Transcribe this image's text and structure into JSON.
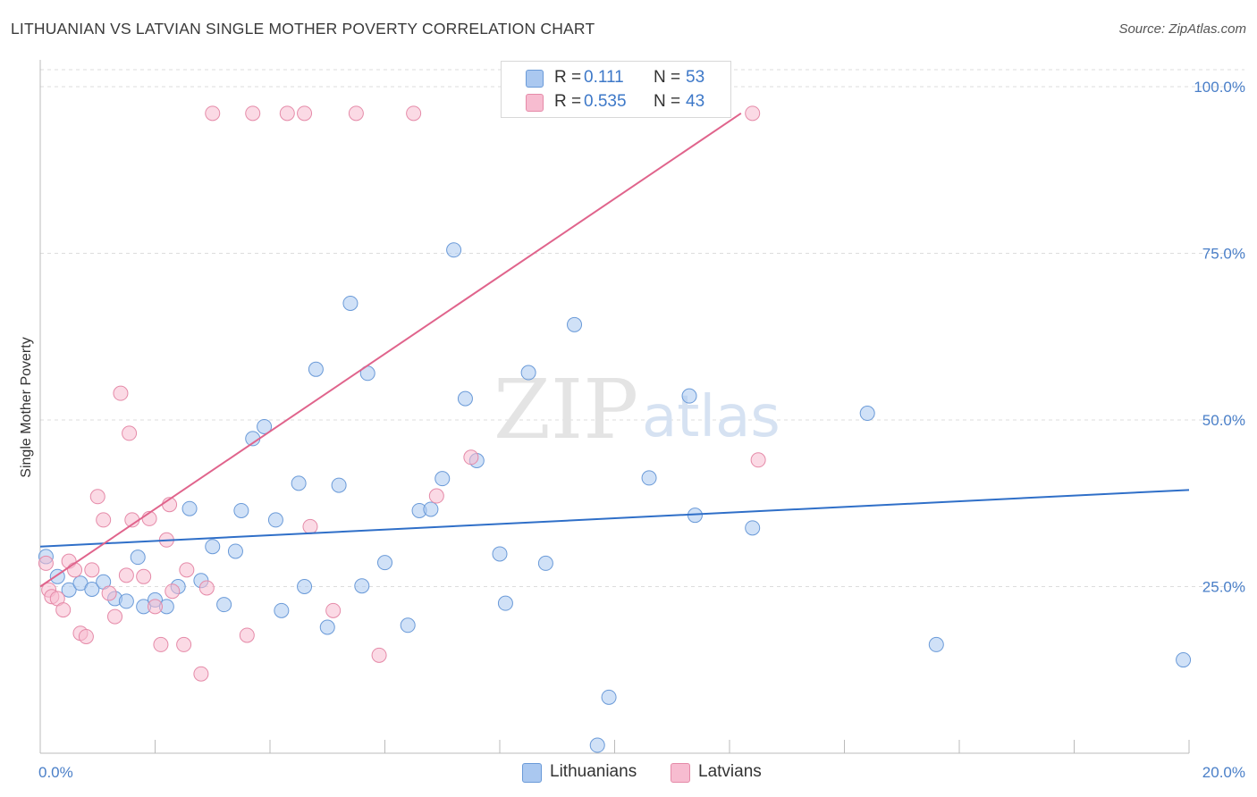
{
  "header": {
    "title": "LITHUANIAN VS LATVIAN SINGLE MOTHER POVERTY CORRELATION CHART",
    "source": "Source: ZipAtlas.com"
  },
  "watermark": {
    "zip": "ZIP",
    "atlas": "atlas"
  },
  "legend": {
    "rows": [
      {
        "r_label": "R =",
        "r_value": "0.111",
        "n_label": "N =",
        "n_value": "53",
        "color": "#aac8f0"
      },
      {
        "r_label": "R =",
        "r_value": "0.535",
        "n_label": "N =",
        "n_value": "43",
        "color": "#f7bcd0"
      }
    ]
  },
  "bottom_legend": [
    {
      "label": "Lithuanians",
      "color": "#aac8f0"
    },
    {
      "label": "Latvians",
      "color": "#f7bcd0"
    }
  ],
  "colors": {
    "lithuanian_fill": "#aac8f0",
    "lithuanian_stroke": "#6a9ad8",
    "lithuanian_line": "#2f6fc8",
    "latvian_fill": "#f7bcd0",
    "latvian_stroke": "#e58aa8",
    "latvian_line": "#e0648c",
    "axis_text": "#4a7fc8",
    "grid": "#dddddd"
  },
  "chart_data": {
    "type": "scatter",
    "title": "LITHUANIAN VS LATVIAN SINGLE MOTHER POVERTY CORRELATION CHART",
    "xlabel": "",
    "ylabel": "Single Mother Poverty",
    "xlim": [
      0,
      20
    ],
    "ylim": [
      0,
      100
    ],
    "x_tick_labels": [
      "0.0%",
      "20.0%"
    ],
    "y_ticks": [
      25,
      50,
      75,
      100
    ],
    "y_tick_labels": [
      "25.0%",
      "50.0%",
      "75.0%",
      "100.0%"
    ],
    "grid": true,
    "legend_position": "top-center",
    "series": [
      {
        "name": "Lithuanians",
        "r": 0.111,
        "n": 53,
        "trendline": {
          "x": [
            0,
            20
          ],
          "y": [
            31.0,
            39.5
          ]
        },
        "points": [
          [
            0.1,
            29.5
          ],
          [
            0.3,
            26.5
          ],
          [
            0.5,
            24.5
          ],
          [
            0.7,
            25.5
          ],
          [
            0.9,
            24.6
          ],
          [
            1.1,
            25.7
          ],
          [
            1.3,
            23.2
          ],
          [
            1.5,
            22.8
          ],
          [
            1.7,
            29.4
          ],
          [
            1.8,
            22.0
          ],
          [
            2.0,
            23.0
          ],
          [
            2.2,
            22.0
          ],
          [
            2.4,
            25.0
          ],
          [
            2.6,
            36.7
          ],
          [
            2.8,
            25.9
          ],
          [
            3.0,
            31.0
          ],
          [
            3.2,
            22.3
          ],
          [
            3.4,
            30.3
          ],
          [
            3.5,
            36.4
          ],
          [
            3.7,
            47.2
          ],
          [
            3.9,
            49.0
          ],
          [
            4.1,
            35.0
          ],
          [
            4.2,
            21.4
          ],
          [
            4.5,
            40.5
          ],
          [
            4.6,
            25.0
          ],
          [
            4.8,
            57.6
          ],
          [
            5.0,
            18.9
          ],
          [
            5.2,
            40.2
          ],
          [
            5.4,
            67.5
          ],
          [
            5.6,
            25.1
          ],
          [
            5.7,
            57.0
          ],
          [
            6.0,
            28.6
          ],
          [
            6.4,
            19.2
          ],
          [
            6.6,
            36.4
          ],
          [
            6.8,
            36.6
          ],
          [
            7.0,
            41.2
          ],
          [
            7.2,
            75.5
          ],
          [
            7.4,
            53.2
          ],
          [
            7.6,
            43.9
          ],
          [
            8.0,
            29.9
          ],
          [
            8.1,
            22.5
          ],
          [
            8.5,
            57.1
          ],
          [
            8.8,
            28.5
          ],
          [
            9.3,
            64.3
          ],
          [
            9.7,
            1.2
          ],
          [
            9.9,
            8.4
          ],
          [
            10.6,
            41.3
          ],
          [
            11.3,
            53.6
          ],
          [
            11.4,
            35.7
          ],
          [
            12.4,
            33.8
          ],
          [
            14.4,
            51.0
          ],
          [
            15.6,
            16.3
          ],
          [
            19.9,
            14.0
          ]
        ]
      },
      {
        "name": "Latvians",
        "r": 0.535,
        "n": 43,
        "trendline": {
          "x": [
            0,
            12.2
          ],
          "y": [
            25.0,
            96.0
          ]
        },
        "points": [
          [
            0.1,
            28.5
          ],
          [
            0.15,
            24.5
          ],
          [
            0.2,
            23.5
          ],
          [
            0.3,
            23.2
          ],
          [
            0.4,
            21.5
          ],
          [
            0.5,
            28.8
          ],
          [
            0.6,
            27.5
          ],
          [
            0.7,
            18.0
          ],
          [
            0.8,
            17.5
          ],
          [
            0.9,
            27.5
          ],
          [
            1.0,
            38.5
          ],
          [
            1.1,
            35.0
          ],
          [
            1.2,
            24.0
          ],
          [
            1.3,
            20.5
          ],
          [
            1.4,
            54.0
          ],
          [
            1.5,
            26.7
          ],
          [
            1.55,
            48.0
          ],
          [
            1.6,
            35.0
          ],
          [
            1.8,
            26.5
          ],
          [
            1.9,
            35.2
          ],
          [
            2.0,
            22.0
          ],
          [
            2.1,
            16.3
          ],
          [
            2.2,
            32.0
          ],
          [
            2.25,
            37.3
          ],
          [
            2.3,
            24.3
          ],
          [
            2.5,
            16.3
          ],
          [
            2.55,
            27.5
          ],
          [
            2.8,
            11.9
          ],
          [
            2.9,
            24.8
          ],
          [
            3.0,
            96.0
          ],
          [
            3.6,
            17.7
          ],
          [
            3.7,
            96.0
          ],
          [
            4.3,
            96.0
          ],
          [
            4.6,
            96.0
          ],
          [
            4.7,
            34.0
          ],
          [
            5.1,
            21.4
          ],
          [
            5.5,
            96.0
          ],
          [
            5.9,
            14.7
          ],
          [
            6.5,
            96.0
          ],
          [
            6.9,
            38.6
          ],
          [
            7.5,
            44.4
          ],
          [
            12.4,
            96.0
          ],
          [
            12.5,
            44.0
          ]
        ]
      }
    ]
  }
}
